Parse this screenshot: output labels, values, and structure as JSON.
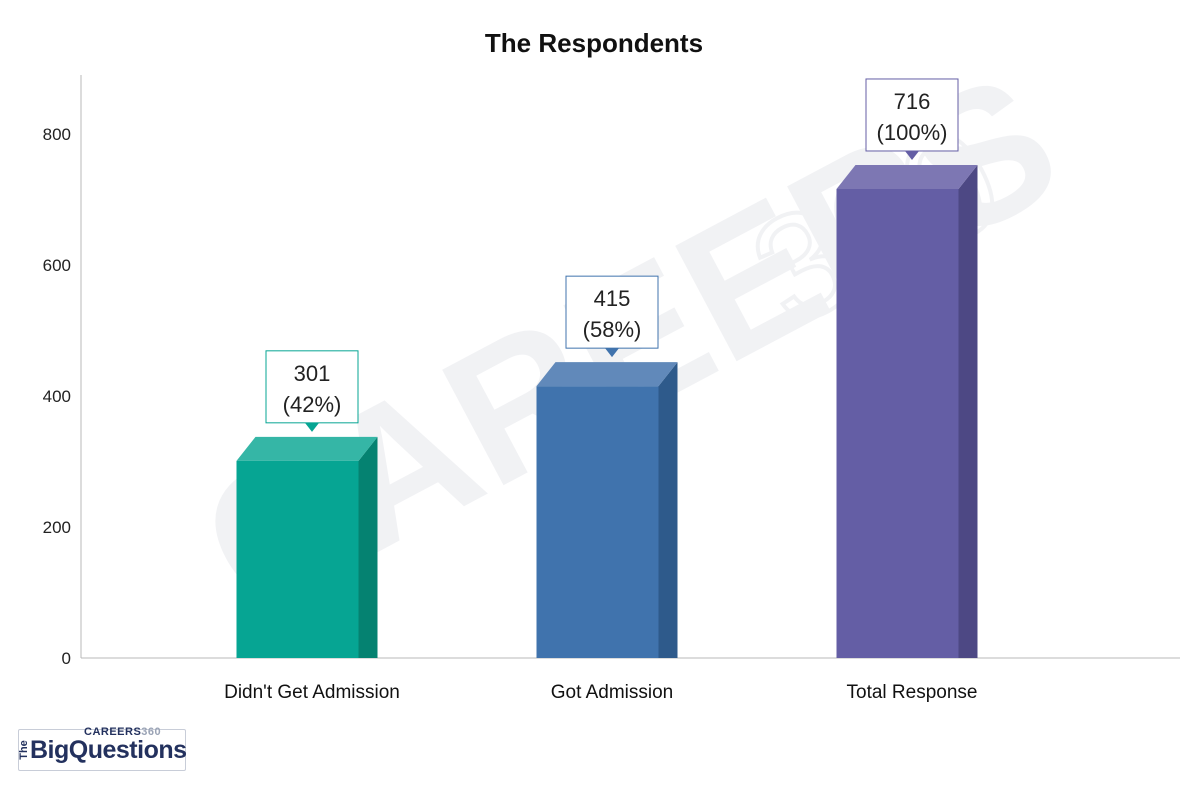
{
  "chart_data": {
    "type": "bar",
    "title": "The Respondents",
    "categories": [
      "Didn't Get Admission",
      "Got Admission",
      "Total Response"
    ],
    "values": [
      301,
      415,
      716
    ],
    "data_labels": [
      {
        "value": "301",
        "pct": "(42%)"
      },
      {
        "value": "415",
        "pct": "(58%)"
      },
      {
        "value": "716",
        "pct": "(100%)"
      }
    ],
    "yticks": [
      "0",
      "200",
      "400",
      "600",
      "800"
    ],
    "ylim": [
      0,
      890
    ],
    "grid": false,
    "legend": "none",
    "colors": [
      "#06a593",
      "#4073ad",
      "#645ea5"
    ],
    "side_colors": [
      "#058271",
      "#2e5a8b",
      "#4d4884"
    ],
    "top_colors": [
      "#35b6a6",
      "#6189ba",
      "#7d77b3"
    ]
  },
  "watermark": {
    "text": "CAREERS",
    "number": "360"
  },
  "logo": {
    "careers": "CAREERS",
    "careers_num": "360",
    "the": "The",
    "brand": "BigQuestions"
  }
}
